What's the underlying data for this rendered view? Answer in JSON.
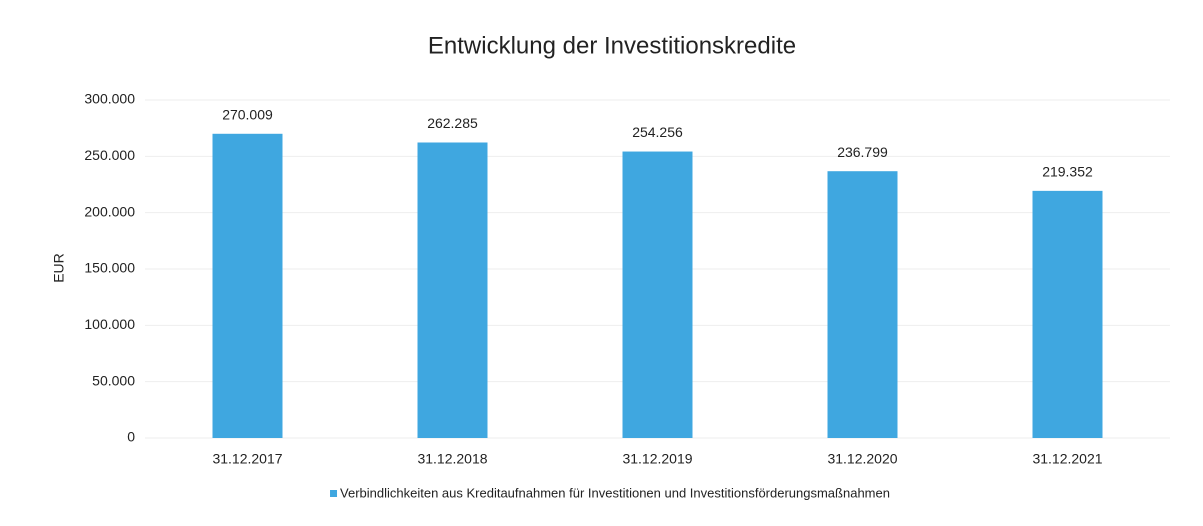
{
  "chart_data": {
    "type": "bar",
    "title": "Entwicklung der Investitionskredite",
    "y_label": "EUR",
    "categories": [
      "31.12.2017",
      "31.12.2018",
      "31.12.2019",
      "31.12.2020",
      "31.12.2021"
    ],
    "series": [
      {
        "name": "Verbindlichkeiten aus Kreditaufnahmen für Investitionen und Investitionsförderungsmaßnahmen",
        "color": "#3fa7e0",
        "values": [
          270009,
          262285,
          254256,
          236799,
          219352
        ],
        "value_labels": [
          "270.009",
          "262.285",
          "254.256",
          "236.799",
          "219.352"
        ]
      }
    ],
    "ylim": [
      0,
      300000
    ],
    "yticks": [
      0,
      {
        "value": 50000,
        "label": "50.000"
      },
      {
        "value": 100000,
        "label": "100.000"
      },
      {
        "value": 150000,
        "label": "150.000"
      },
      {
        "value": 200000,
        "label": "200.000"
      },
      {
        "value": 250000,
        "label": "250.000"
      },
      {
        "value": 300000,
        "label": "300.000"
      }
    ],
    "grid": true
  }
}
